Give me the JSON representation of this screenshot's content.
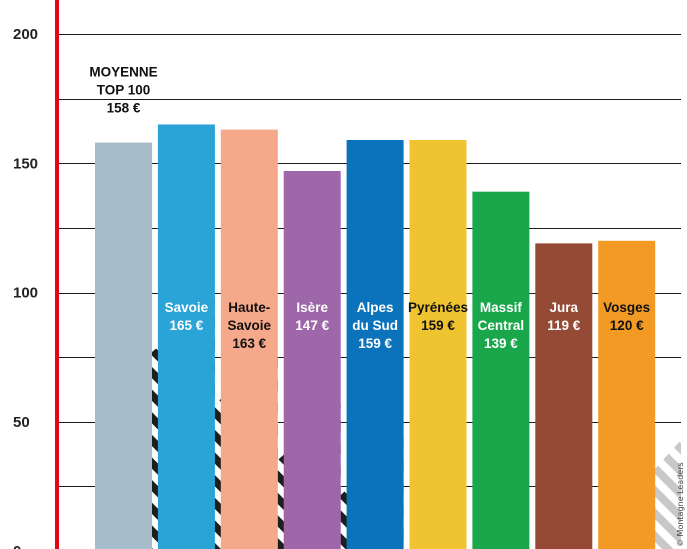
{
  "chart_data": {
    "type": "bar",
    "categories": [
      "MOYENNE TOP 100",
      "Savoie",
      "Haute-Savoie",
      "Isère",
      "Alpes du Sud",
      "Pyrénées",
      "Massif Central",
      "Jura",
      "Vosges"
    ],
    "values": [
      158,
      165,
      163,
      147,
      159,
      159,
      139,
      119,
      120
    ],
    "labels": [
      [
        "MOYENNE",
        "TOP 100",
        "158 €"
      ],
      [
        "Savoie",
        "165 €"
      ],
      [
        "Haute-",
        "Savoie",
        "163 €"
      ],
      [
        "Isère",
        "147 €"
      ],
      [
        "Alpes",
        "du Sud",
        "159 €"
      ],
      [
        "Pyrénées",
        "159 €"
      ],
      [
        "Massif",
        "Central",
        "139 €"
      ],
      [
        "Jura",
        "119 €"
      ],
      [
        "Vosges",
        "120 €"
      ]
    ],
    "colors": [
      "#a7bccb",
      "#2aa3d6",
      "#f5a88a",
      "#9d67aa",
      "#0b72bc",
      "#f0c430",
      "#1aa64a",
      "#944a34",
      "#f29a24"
    ],
    "label_colors": [
      "#111111",
      "#ffffff",
      "#111111",
      "#ffffff",
      "#ffffff",
      "#111111",
      "#ffffff",
      "#ffffff",
      "#111111"
    ],
    "label_position": [
      "above",
      "inside",
      "inside",
      "inside",
      "inside",
      "inside",
      "inside",
      "inside",
      "inside"
    ],
    "yticks": [
      0,
      50,
      100,
      150,
      200
    ],
    "ylim": [
      0,
      200
    ],
    "grid": true,
    "axis_color": "#e30613",
    "title": "",
    "xlabel": "",
    "ylabel": ""
  },
  "credit": "© Montagne Leaders"
}
